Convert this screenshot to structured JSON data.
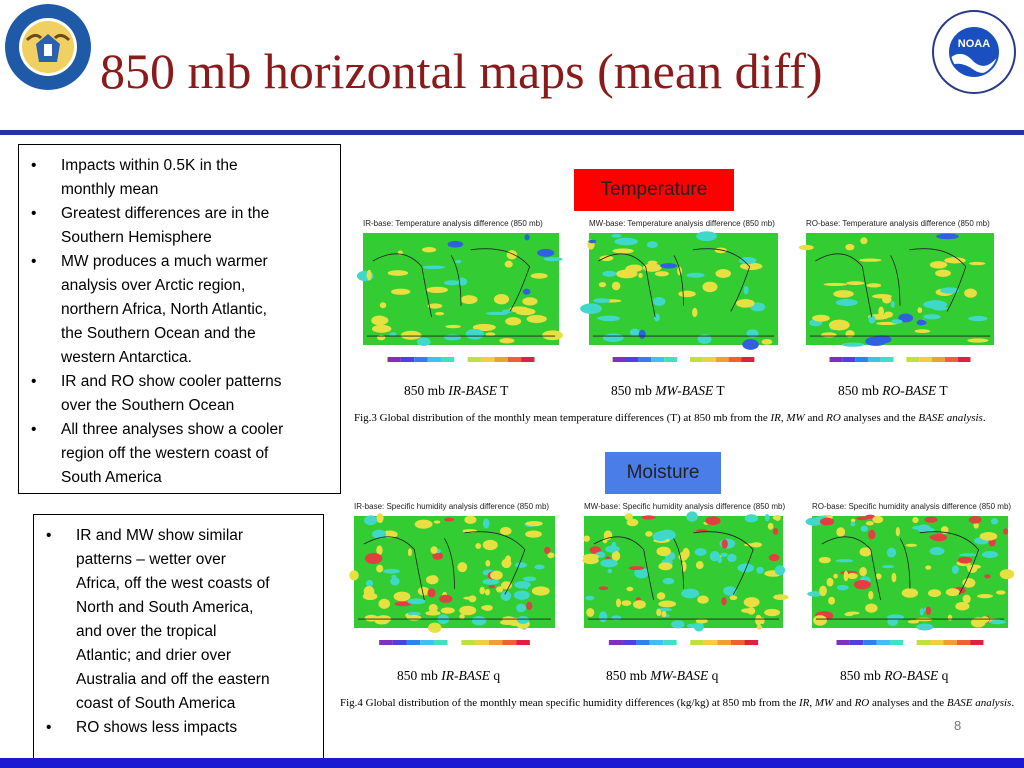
{
  "slide": {
    "title": "850 mb horizontal maps (mean diff)",
    "page_number": "8"
  },
  "logos": {
    "left": {
      "text": "DEPARTMENT OF COMMERCE · UNITED STATES OF AMERICA"
    },
    "right": {
      "badge": "NOAA",
      "text": "NATIONAL OCEANIC AND ATMOSPHERIC ADMINISTRATION · U.S. DEPARTMENT OF COMMERCE"
    }
  },
  "box1": {
    "bullets": [
      [
        "Impacts within 0.5K in the",
        "monthly mean"
      ],
      [
        "Greatest differences are in the",
        "Southern Hemisphere"
      ],
      [
        "MW produces a much warmer",
        "analysis over Arctic region,",
        "northern Africa, North Atlantic,",
        "the Southern Ocean and the",
        "western Antarctica."
      ],
      [
        "IR and RO show cooler patterns",
        "over the Southern Ocean"
      ],
      [
        "All three analyses show a cooler",
        "region off the western coast of",
        "South America"
      ]
    ]
  },
  "box2": {
    "bullets": [
      [
        "IR and MW show similar",
        "patterns – wetter over",
        "Africa, off the west coasts of",
        "North and South America,",
        "and over the tropical",
        "Atlantic; and drier over",
        "Australia and off the eastern",
        "coast of South America"
      ],
      [
        "RO shows less impacts"
      ]
    ]
  },
  "temperature": {
    "label": "Temperature",
    "maps": [
      {
        "title": "IR-base: Temperature analysis difference (850 mb)",
        "cap_prefix": "850 mb ",
        "cap_italic": "IR-BASE",
        "cap_suffix": " T"
      },
      {
        "title": "MW-base: Temperature analysis difference (850 mb)",
        "cap_prefix": "850 mb ",
        "cap_italic": "MW-BASE",
        "cap_suffix": " T"
      },
      {
        "title": "RO-base: Temperature analysis difference (850 mb)",
        "cap_prefix": "850 mb  ",
        "cap_italic": "RO-BASE",
        "cap_suffix": " T"
      }
    ],
    "fig_parts": [
      "Fig.3 Global distribution of the monthly mean temperature differences (T) at 850 mb from the ",
      "IR",
      ", ",
      "MW",
      " and ",
      "RO",
      " analyses and the ",
      "BASE analysis",
      "."
    ]
  },
  "moisture": {
    "label": "Moisture",
    "maps": [
      {
        "title": "IR-base: Specific humidity analysis difference (850 mb)",
        "cap_prefix": "850 mb ",
        "cap_italic": "IR-BASE",
        "cap_suffix": " q"
      },
      {
        "title": "MW-base: Specific humidity analysis difference (850 mb)",
        "cap_prefix": "850 mb ",
        "cap_italic": "MW-BASE",
        "cap_suffix": " q"
      },
      {
        "title": "RO-base: Specific humidity analysis difference (850 mb)",
        "cap_prefix": "850 mb ",
        "cap_italic": "RO-BASE",
        "cap_suffix": " q"
      }
    ],
    "fig_parts": [
      "Fig.4 Global distribution of the monthly mean specific humidity differences (kg/kg) at 850 mb from the ",
      "IR",
      ", ",
      "MW",
      " and ",
      "RO",
      " analyses and the ",
      "BASE analysis",
      "."
    ]
  },
  "colors": {
    "title": "#8b1a1a",
    "rule": "#2233aa",
    "temperature_label_bg": "#ff0000",
    "moisture_label_bg": "#4a7de8",
    "map_green": "#33cc33",
    "map_yellow": "#e8e040",
    "map_cyan": "#40d8c8"
  }
}
